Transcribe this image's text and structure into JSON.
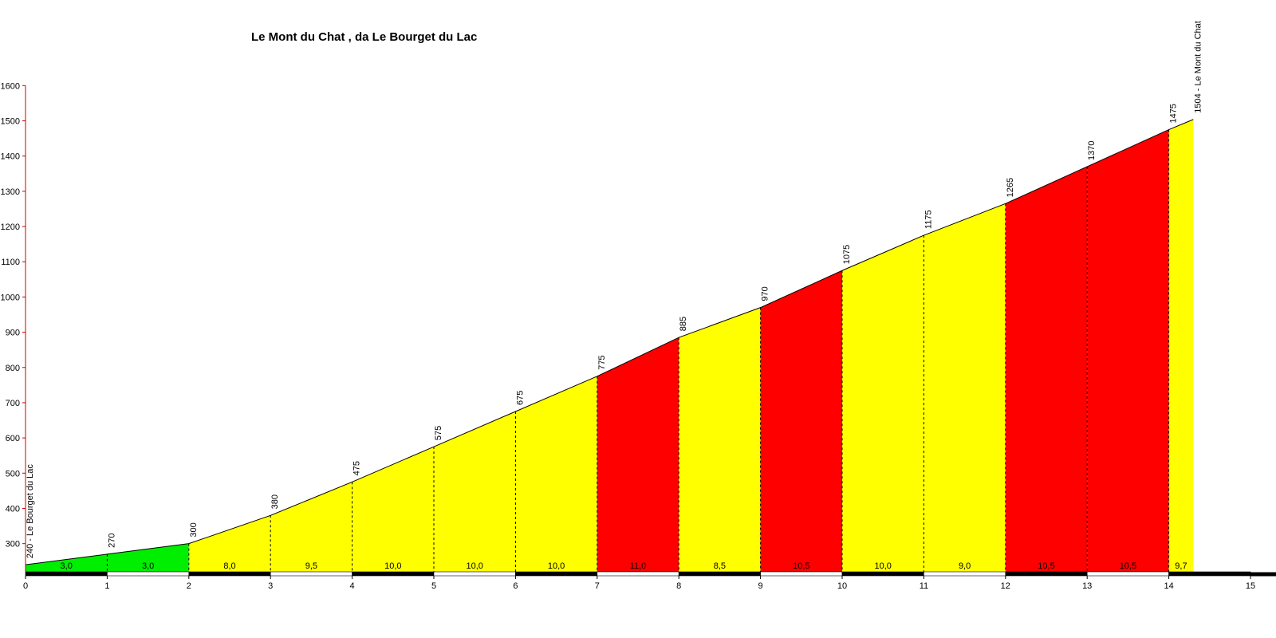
{
  "chart_data": {
    "type": "area",
    "title": "Le Mont du Chat , da Le Bourget du Lac",
    "xlabel": "",
    "ylabel": "",
    "xlim": [
      0,
      15
    ],
    "ylim": [
      220,
      1600
    ],
    "x_ticks": [
      "0",
      "1",
      "2",
      "3",
      "4",
      "5",
      "6",
      "7",
      "8",
      "9",
      "10",
      "11",
      "12",
      "13",
      "14",
      "15"
    ],
    "y_ticks": [
      "300",
      "400",
      "500",
      "600",
      "700",
      "800",
      "900",
      "1000",
      "1100",
      "1200",
      "1300",
      "1400",
      "1500",
      "1600"
    ],
    "points": [
      {
        "km": 0,
        "altitude": 240
      },
      {
        "km": 1,
        "altitude": 270
      },
      {
        "km": 2,
        "altitude": 300
      },
      {
        "km": 3,
        "altitude": 380
      },
      {
        "km": 4,
        "altitude": 475
      },
      {
        "km": 5,
        "altitude": 575
      },
      {
        "km": 6,
        "altitude": 675
      },
      {
        "km": 7,
        "altitude": 775
      },
      {
        "km": 8,
        "altitude": 885
      },
      {
        "km": 9,
        "altitude": 970
      },
      {
        "km": 10,
        "altitude": 1075
      },
      {
        "km": 11,
        "altitude": 1175
      },
      {
        "km": 12,
        "altitude": 1265
      },
      {
        "km": 13,
        "altitude": 1370
      },
      {
        "km": 14,
        "altitude": 1475
      },
      {
        "km": 14.3,
        "altitude": 1504
      }
    ],
    "point_labels": [
      "240 - Le Bourget du Lac",
      "270",
      "300",
      "380",
      "475",
      "575",
      "675",
      "775",
      "885",
      "970",
      "1075",
      "1175",
      "1265",
      "1370",
      "1475",
      "1504 - Le Mont du Chat"
    ],
    "segments": [
      {
        "gradient": "3,0",
        "color": "#00ee00"
      },
      {
        "gradient": "3,0",
        "color": "#00ee00"
      },
      {
        "gradient": "8,0",
        "color": "#ffff00"
      },
      {
        "gradient": "9,5",
        "color": "#ffff00"
      },
      {
        "gradient": "10,0",
        "color": "#ffff00"
      },
      {
        "gradient": "10,0",
        "color": "#ffff00"
      },
      {
        "gradient": "10,0",
        "color": "#ffff00"
      },
      {
        "gradient": "11,0",
        "color": "#ff0000"
      },
      {
        "gradient": "8,5",
        "color": "#ffff00"
      },
      {
        "gradient": "10,5",
        "color": "#ff0000"
      },
      {
        "gradient": "10,0",
        "color": "#ffff00"
      },
      {
        "gradient": "9,0",
        "color": "#ffff00"
      },
      {
        "gradient": "10,5",
        "color": "#ff0000"
      },
      {
        "gradient": "10,5",
        "color": "#ff0000"
      },
      {
        "gradient": "9,7",
        "color": "#ffff00"
      }
    ],
    "grid": false,
    "legend": "none"
  }
}
